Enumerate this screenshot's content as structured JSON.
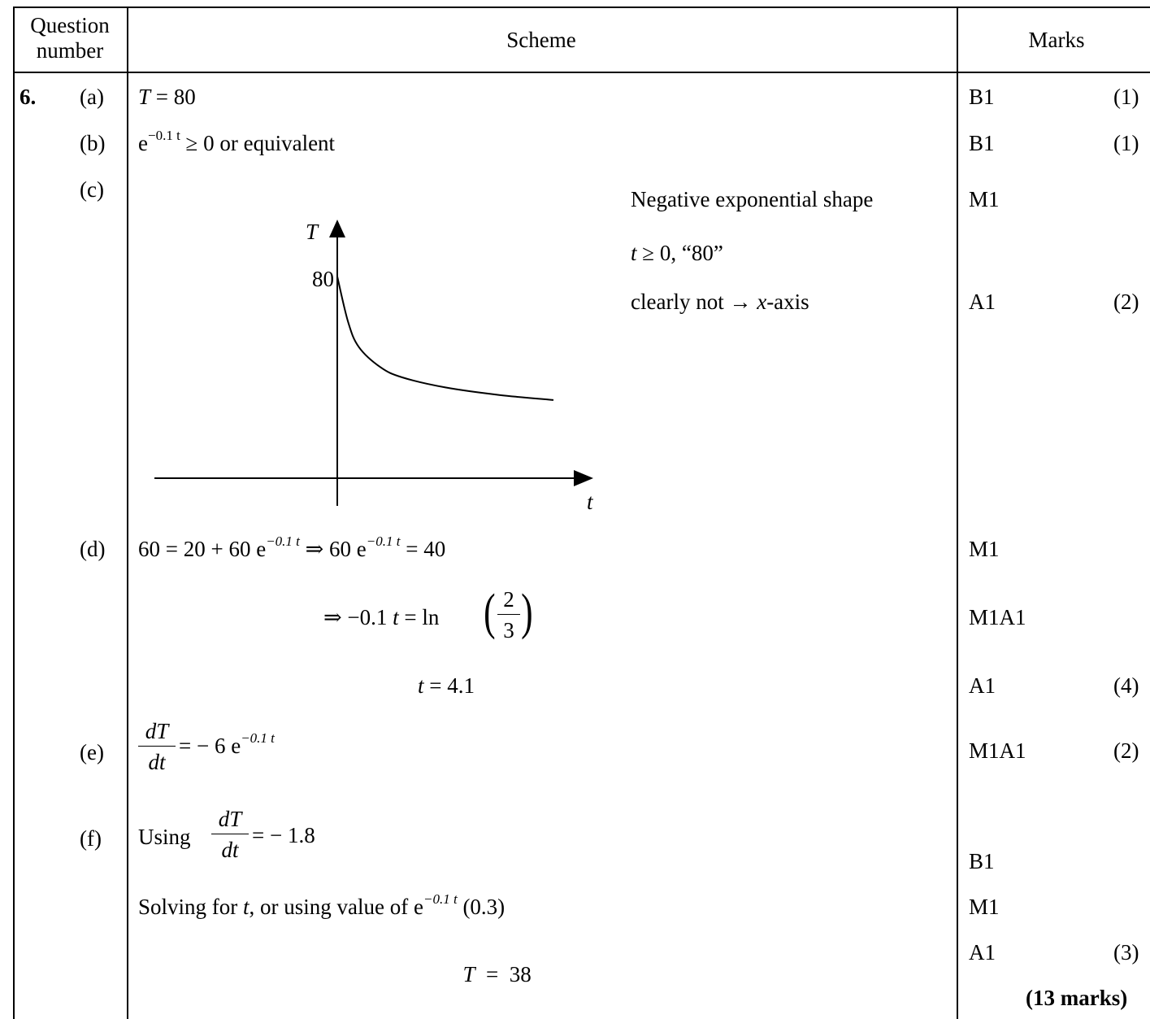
{
  "header": {
    "question_number": "Question number",
    "scheme": "Scheme",
    "marks": "Marks"
  },
  "question": {
    "number": "6."
  },
  "parts": {
    "a": {
      "label": "(a)",
      "var_T": "T",
      "rest": " = 80",
      "mark": "B1",
      "total": "(1)"
    },
    "b": {
      "label": "(b)",
      "e": "e",
      "exp": "−0.1 t",
      "rest": " ≥ 0 or equivalent",
      "mark": "B1",
      "total": "(1)"
    },
    "c": {
      "label": "(c)",
      "note1": "Negative exponential shape",
      "note2_var": "t",
      "note2_rest": " ≥ 0, “80”",
      "note3_pre": "clearly not → ",
      "note3_var": "x",
      "note3_post": "-axis",
      "mark1": "M1",
      "mark2": "A1",
      "total": "(2)"
    },
    "d": {
      "label": "(d)",
      "l1_a": "60 = 20 + 60 e",
      "l1_exp": "−0.1 t",
      "l1_b": " ⇒ 60 e",
      "l1_exp2": "−0.1 t",
      "l1_c": " = 40",
      "l2_a": "⇒ −0.1 ",
      "l2_var": "t",
      "l2_b": " = ln",
      "l2_num": "2",
      "l2_den": "3",
      "l3_var": "t",
      "l3_rest": " = 4.1",
      "mark1": "M1",
      "mark2": "M1A1",
      "mark3": "A1",
      "total": "(4)"
    },
    "e": {
      "label": "(e)",
      "num": "dT",
      "den": "dt",
      "rest": " = − 6 e",
      "exp": "−0.1 t",
      "mark": "M1A1",
      "total": "(2)"
    },
    "f": {
      "label": "(f)",
      "l1_a": "Using",
      "num": "dT",
      "den": "dt",
      "l1_b": " = − 1.8",
      "l2_a": "Solving for ",
      "l2_var": "t",
      "l2_b": ", or using value of  e",
      "l2_exp": "−0.1 t",
      "l2_c": "  (0.3)",
      "l3_var": "T",
      "l3_rest": "  =  38",
      "mark1": "B1",
      "mark2": "M1",
      "mark3": "A1",
      "total": "(3)"
    }
  },
  "grand_total": "(13 marks)",
  "chart_data": {
    "type": "line",
    "title": "",
    "xlabel": "t",
    "ylabel": "T",
    "y_tick_labels": [
      "80"
    ],
    "series": [
      {
        "x": [
          0,
          2,
          4,
          8,
          12,
          20,
          30,
          40
        ],
        "y": [
          80,
          62,
          52,
          44,
          40,
          36,
          33,
          31
        ]
      }
    ],
    "grid": false,
    "legend": "none"
  }
}
